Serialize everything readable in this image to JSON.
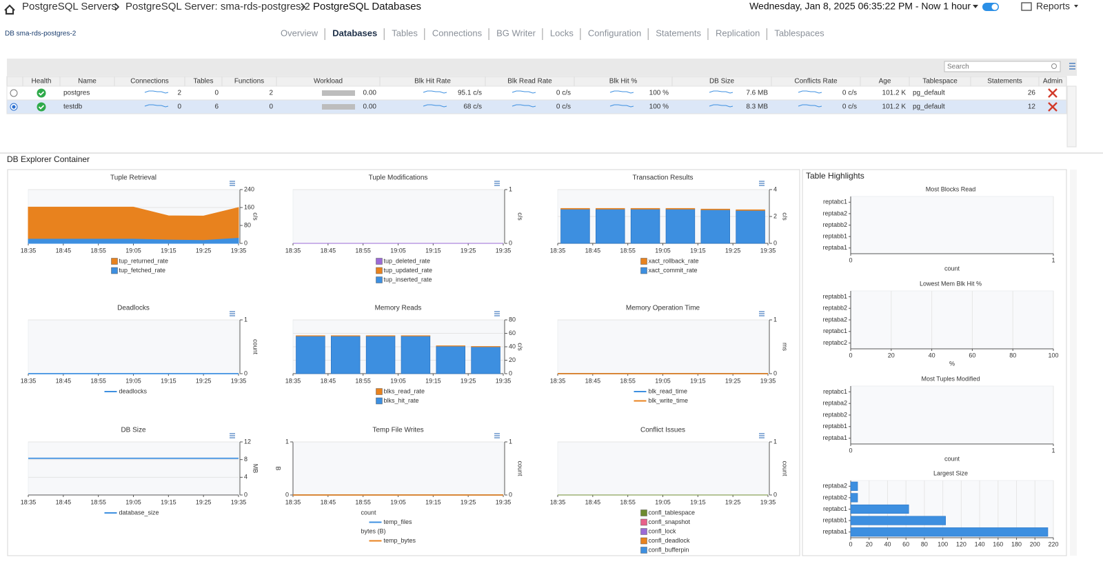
{
  "header": {
    "breadcrumb": [
      "PostgreSQL Servers",
      "PostgreSQL Server: sma-rds-postgres-2",
      "PostgreSQL Databases"
    ],
    "time_range": "Wednesday, Jan 8, 2025 06:35:22 PM - Now 1 hour",
    "reports": "Reports"
  },
  "db_label": "DB sma-rds-postgres-2",
  "tabs": [
    "Overview",
    "Databases",
    "Tables",
    "Connections",
    "BG Writer",
    "Locks",
    "Configuration",
    "Statements",
    "Replication",
    "Tablespaces"
  ],
  "active_tab": 1,
  "search_placeholder": "Search",
  "table": {
    "columns": [
      "Health",
      "Name",
      "Connections",
      "Tables",
      "Functions",
      "Workload",
      "Blk Hit Rate",
      "Blk Read Rate",
      "Blk Hit %",
      "DB Size",
      "Conflicts Rate",
      "Age",
      "Tablespace",
      "Statements",
      "Admin"
    ],
    "rows": [
      [
        "postgres",
        "2",
        "0",
        "2",
        "0.00",
        "95.1 c/s",
        "0 c/s",
        "100 %",
        "7.6 MB",
        "0 c/s",
        "101.2 K",
        "pg_default",
        "26"
      ],
      [
        "testdb",
        "0",
        "6",
        "0",
        "0.00",
        "68 c/s",
        "0 c/s",
        "100 %",
        "8.3 MB",
        "0 c/s",
        "101.2 K",
        "pg_default",
        "12"
      ]
    ],
    "selected_row": 1
  },
  "explorer_title": "DB Explorer Container",
  "highlights_title": "Table Highlights",
  "chart_data": [
    {
      "type": "area",
      "title": "Tuple Retrieval",
      "xticks": [
        "18:35",
        "18:45",
        "18:55",
        "19:05",
        "19:15",
        "19:25",
        "19:35"
      ],
      "series": [
        {
          "name": "tup_returned_rate",
          "color": "#e8821e",
          "values": [
            140,
            140,
            140,
            140,
            105,
            106,
            134
          ]
        },
        {
          "name": "tup_fetched_rate",
          "color": "#3d8fe0",
          "values": [
            22,
            22,
            22,
            22,
            18,
            16,
            26
          ]
        }
      ],
      "ylim": [
        0,
        240
      ],
      "yticks": [
        0,
        80,
        160,
        240
      ],
      "ylabel": "c/s",
      "grid": true
    },
    {
      "type": "area",
      "title": "Tuple Modifications",
      "xticks": [
        "18:35",
        "18:45",
        "18:55",
        "19:05",
        "19:15",
        "19:25",
        "19:35"
      ],
      "series": [
        {
          "name": "tup_deleted_rate",
          "color": "#9b6ad6",
          "values": [
            0,
            0,
            0,
            0,
            0,
            0,
            0
          ]
        },
        {
          "name": "tup_updated_rate",
          "color": "#e8821e",
          "values": [
            0,
            0,
            0,
            0,
            0,
            0,
            0
          ]
        },
        {
          "name": "tup_inserted_rate",
          "color": "#3d8fe0",
          "values": [
            0,
            0,
            0,
            0,
            0,
            0,
            0
          ]
        }
      ],
      "ylim": [
        0,
        1
      ],
      "yticks": [
        0,
        1
      ],
      "ylabel": "c/s",
      "grid": true
    },
    {
      "type": "bar",
      "title": "Transaction Results",
      "xticks": [
        "18:35",
        "18:45",
        "18:55",
        "19:05",
        "19:15",
        "19:25",
        "19:35"
      ],
      "series": [
        {
          "name": "xact_rollback_rate",
          "color": "#e8821e",
          "values": [
            0.05,
            0.05,
            0.05,
            0.05,
            0.05,
            0.05
          ]
        },
        {
          "name": "xact_commit_rate",
          "color": "#3d8fe0",
          "values": [
            2.55,
            2.55,
            2.55,
            2.55,
            2.5,
            2.45
          ]
        }
      ],
      "ylim": [
        0,
        4
      ],
      "yticks": [
        0,
        2,
        4
      ],
      "ylabel": "c/s",
      "grid": true
    },
    {
      "type": "line",
      "title": "Deadlocks",
      "xticks": [
        "18:35",
        "18:45",
        "18:55",
        "19:05",
        "19:15",
        "19:25",
        "19:35"
      ],
      "series": [
        {
          "name": "deadlocks",
          "color": "#3d8fe0",
          "values": [
            0,
            0,
            0,
            0,
            0,
            0,
            0
          ]
        }
      ],
      "ylim": [
        0,
        1
      ],
      "yticks": [
        0,
        1
      ],
      "ylabel": "count",
      "grid": true
    },
    {
      "type": "bar",
      "title": "Memory Reads",
      "xticks": [
        "18:35",
        "18:45",
        "18:55",
        "19:05",
        "19:15",
        "19:25",
        "19:35"
      ],
      "series": [
        {
          "name": "blks_read_rate",
          "color": "#e8821e",
          "values": [
            0.5,
            0.5,
            0.5,
            0.5,
            0.5,
            0.5
          ]
        },
        {
          "name": "blks_hit_rate",
          "color": "#3d8fe0",
          "values": [
            56,
            56,
            56,
            56,
            41,
            40
          ]
        }
      ],
      "ylim": [
        0,
        80
      ],
      "yticks": [
        0,
        20,
        40,
        60,
        80
      ],
      "ylabel": "c/s",
      "grid": true
    },
    {
      "type": "line",
      "title": "Memory Operation Time",
      "xticks": [
        "18:35",
        "18:45",
        "18:55",
        "19:05",
        "19:15",
        "19:25",
        "19:35"
      ],
      "series": [
        {
          "name": "blk_read_time",
          "color": "#3d8fe0",
          "values": [
            0,
            0,
            0,
            0,
            0,
            0,
            0
          ]
        },
        {
          "name": "blk_write_time",
          "color": "#e8821e",
          "values": [
            0,
            0,
            0,
            0,
            0,
            0,
            0
          ]
        }
      ],
      "ylim": [
        0,
        1
      ],
      "yticks": [
        0,
        1
      ],
      "ylabel": "ms",
      "grid": true
    },
    {
      "type": "line",
      "title": "DB Size",
      "xticks": [
        "18:35",
        "18:45",
        "18:55",
        "19:05",
        "19:15",
        "19:25",
        "19:35"
      ],
      "series": [
        {
          "name": "database_size",
          "color": "#3d8fe0",
          "values": [
            8.3,
            8.3,
            8.3,
            8.3,
            8.3,
            8.3,
            8.3
          ]
        }
      ],
      "ylim": [
        0,
        12
      ],
      "yticks": [
        0,
        4,
        8,
        12
      ],
      "ylabel": "MB",
      "grid": true
    },
    {
      "type": "line",
      "title": "Temp File Writes",
      "xticks": [
        "18:35",
        "18:45",
        "18:55",
        "19:05",
        "19:15",
        "19:25",
        "19:35"
      ],
      "series": [
        {
          "name": "temp_files",
          "color": "#3d8fe0",
          "axis": "y2",
          "values": [
            0,
            0,
            0,
            0,
            0,
            0,
            0
          ]
        },
        {
          "name": "temp_bytes",
          "color": "#e8821e",
          "axis": "y",
          "values": [
            0,
            0,
            0,
            0,
            0,
            0,
            0
          ]
        }
      ],
      "ylim": [
        0,
        1
      ],
      "yticks": [
        0,
        1
      ],
      "ylabel": "B",
      "y2lim": [
        0,
        1
      ],
      "y2ticks": [
        0,
        1
      ],
      "y2label": "count",
      "grid": true,
      "legend_groups": [
        {
          "title": "count",
          "axis": "y2"
        },
        {
          "title": "bytes (B)",
          "axis": "y"
        }
      ]
    },
    {
      "type": "area",
      "title": "Conflict Issues",
      "xticks": [
        "18:35",
        "18:45",
        "18:55",
        "19:05",
        "19:15",
        "19:25",
        "19:35"
      ],
      "series": [
        {
          "name": "confl_tablespace",
          "color": "#6e8b2f",
          "values": [
            0,
            0,
            0,
            0,
            0,
            0,
            0
          ]
        },
        {
          "name": "confl_snapshot",
          "color": "#e8608a",
          "values": [
            0,
            0,
            0,
            0,
            0,
            0,
            0
          ]
        },
        {
          "name": "confl_lock",
          "color": "#9b6ad6",
          "values": [
            0,
            0,
            0,
            0,
            0,
            0,
            0
          ]
        },
        {
          "name": "confl_deadlock",
          "color": "#e8821e",
          "values": [
            0,
            0,
            0,
            0,
            0,
            0,
            0
          ]
        },
        {
          "name": "confl_bufferpin",
          "color": "#3d8fe0",
          "values": [
            0,
            0,
            0,
            0,
            0,
            0,
            0
          ]
        }
      ],
      "ylim": [
        0,
        1
      ],
      "yticks": [
        0,
        1
      ],
      "ylabel": "count",
      "grid": true
    },
    {
      "type": "hbar",
      "title": "Most Blocks Read",
      "categories": [
        "reptabc1",
        "reptaba2",
        "reptabb2",
        "reptabb1",
        "reptaba1"
      ],
      "values": [
        0,
        0,
        0,
        0,
        0
      ],
      "color": "#3d8fe0",
      "xlim": [
        0,
        1
      ],
      "xticks": [
        0,
        1
      ],
      "xlabel": "count",
      "grid": true
    },
    {
      "type": "hbar",
      "title": "Lowest Mem Blk Hit %",
      "categories": [
        "reptabb1",
        "reptabb2",
        "reptaba2",
        "reptabc1",
        "reptabc2"
      ],
      "values": [
        0,
        0,
        0,
        0,
        0
      ],
      "color": "#3d8fe0",
      "xlim": [
        0,
        100
      ],
      "xticks": [
        0,
        20,
        40,
        60,
        80,
        100
      ],
      "xlabel": "%",
      "grid": true
    },
    {
      "type": "hbar",
      "title": "Most Tuples Modified",
      "categories": [
        "reptabc1",
        "reptaba2",
        "reptabb2",
        "reptabb1",
        "reptaba1"
      ],
      "values": [
        0,
        0,
        0,
        0,
        0
      ],
      "color": "#3d8fe0",
      "xlim": [
        0,
        1
      ],
      "xticks": [
        0,
        1
      ],
      "xlabel": "count",
      "grid": true
    },
    {
      "type": "hbar",
      "title": "Largest Size",
      "categories": [
        "reptaba2",
        "reptabb2",
        "reptabc1",
        "reptabb1",
        "reptaba1"
      ],
      "values": [
        7.5,
        7.5,
        63,
        103,
        214
      ],
      "color": "#3d8fe0",
      "xlim": [
        0,
        220
      ],
      "xticks": [
        0,
        20,
        40,
        60,
        80,
        100,
        120,
        140,
        160,
        180,
        200,
        220
      ],
      "grid": true
    }
  ]
}
